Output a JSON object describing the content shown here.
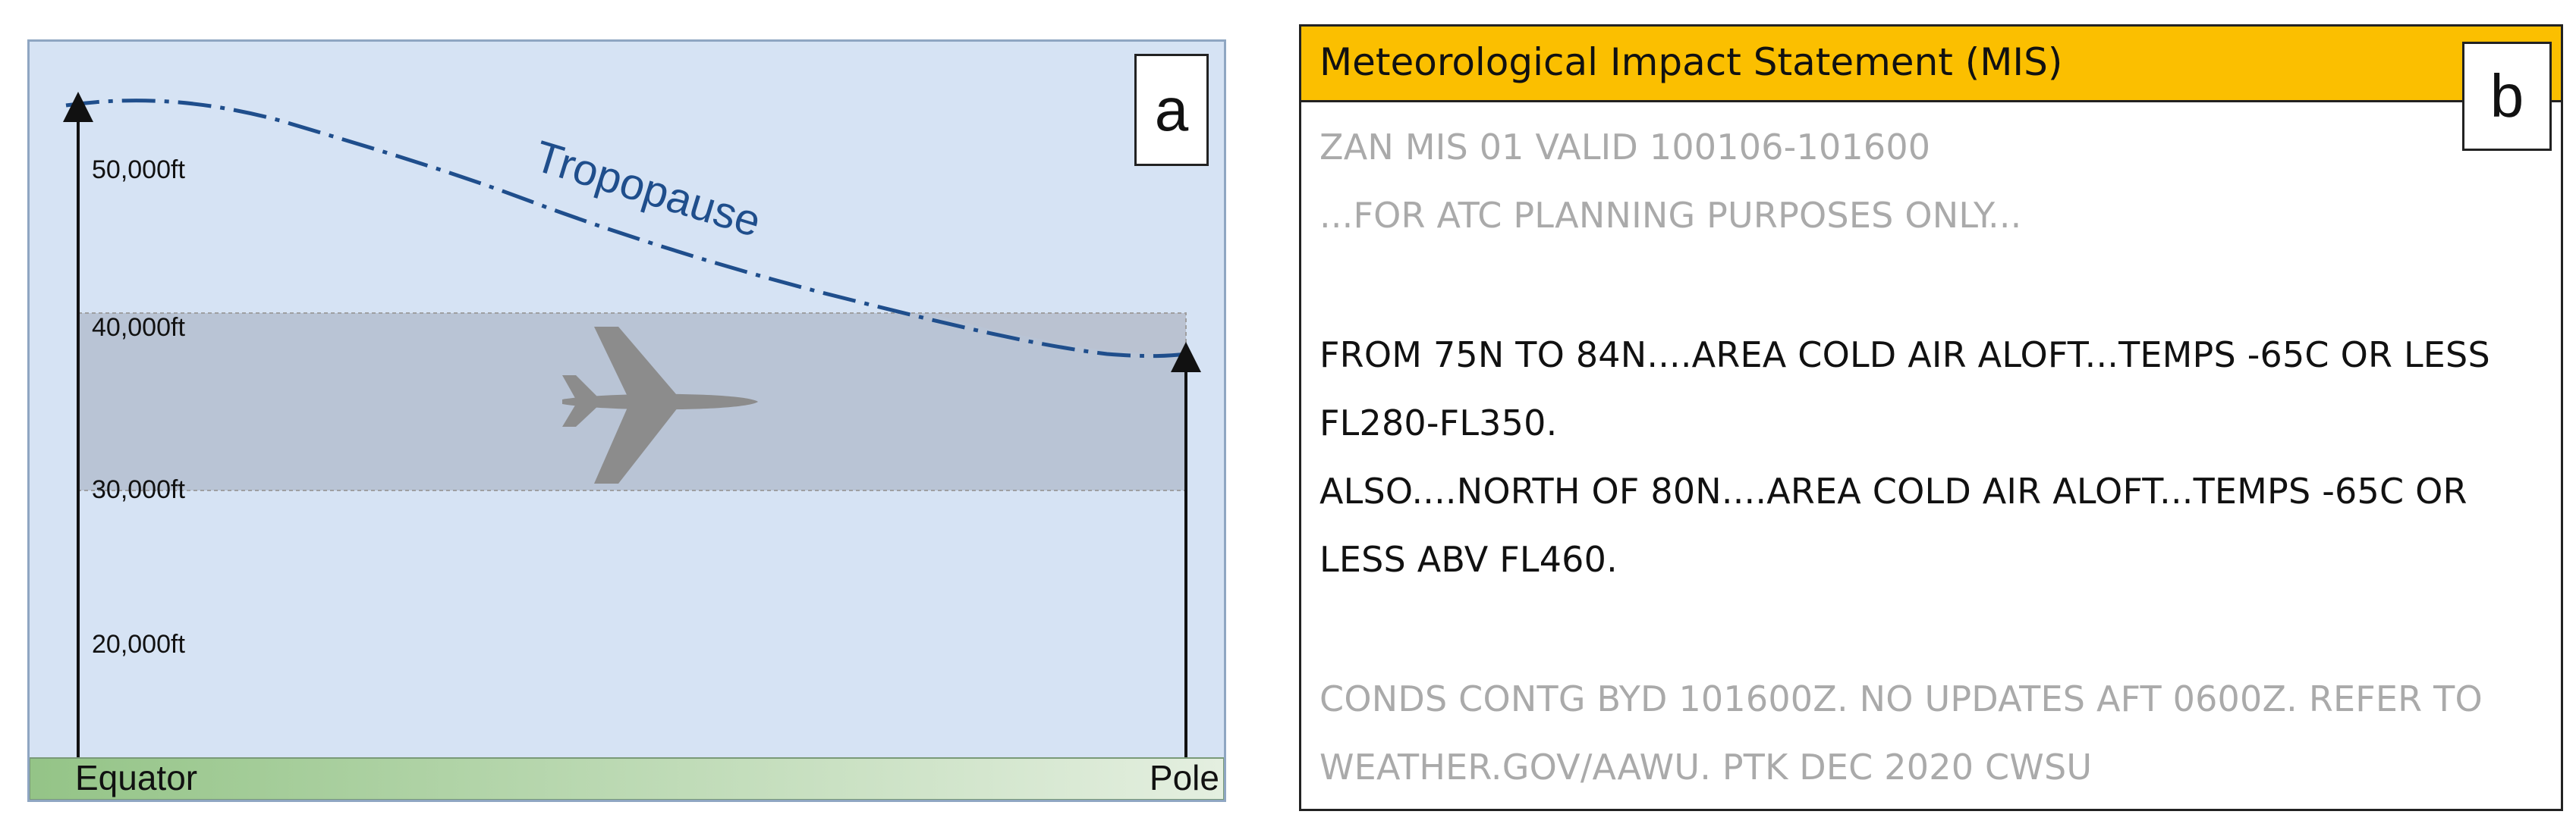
{
  "panel_a": {
    "letter": "a",
    "tropopause_label": "Tropopause",
    "altitudes": [
      "50,000ft",
      "40,000ft",
      "30,000ft",
      "20,000ft"
    ],
    "ground_left": "Equator",
    "ground_right": "Pole",
    "airplane_icon": "airplane-icon",
    "colors": {
      "sky": "#d6e3f4",
      "flight_band": "#b7c2d3",
      "cold_air": "#e8c8c3",
      "tropopause_line": "#1f4e8c",
      "ground": "#a9cfa0"
    }
  },
  "panel_b": {
    "letter": "b",
    "header": "Meteorological Impact Statement (MIS)",
    "header_color": "#fbbf00",
    "lines": [
      "ZAN MIS 01 VALID 100106-101600",
      "...FOR ATC PLANNING PURPOSES ONLY...",
      "FROM 75N TO 84N....AREA COLD AIR ALOFT...TEMPS -65C OR LESS",
      "FL280-FL350.",
      "ALSO....NORTH OF 80N....AREA COLD AIR ALOFT...TEMPS -65C OR",
      "LESS ABV FL460.",
      "CONDS CONTG BYD 101600Z.  NO UPDATES AFT 0600Z. REFER TO",
      "WEATHER.GOV/AAWU. PTK DEC 2020 CWSU"
    ]
  }
}
